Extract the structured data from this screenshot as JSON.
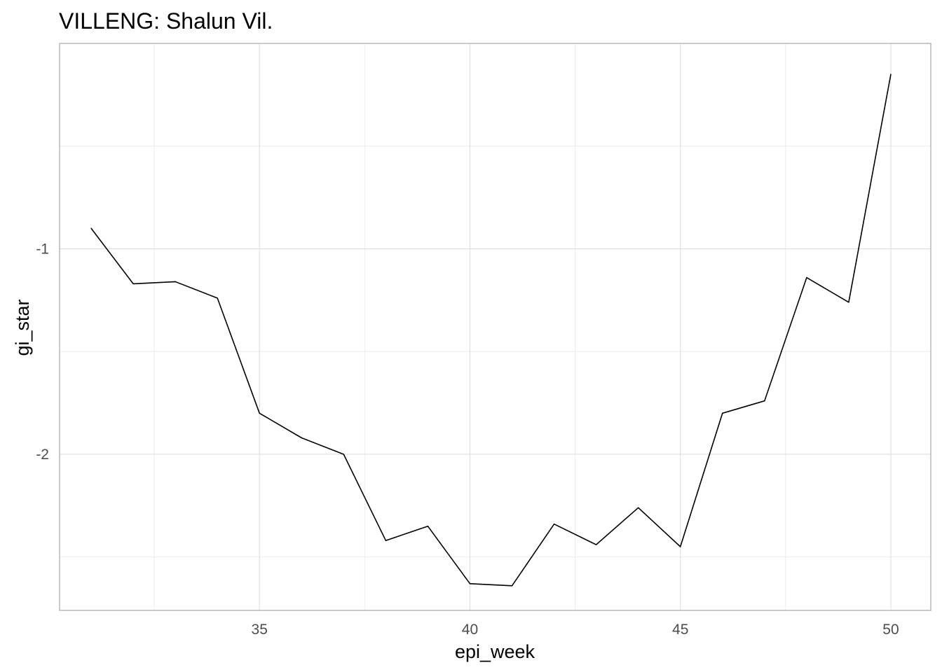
{
  "chart_data": {
    "type": "line",
    "title": "VILLENG: Shalun Vil.",
    "xlabel": "epi_week",
    "ylabel": "gi_star",
    "x": [
      31,
      32,
      33,
      34,
      35,
      36,
      37,
      38,
      39,
      40,
      41,
      42,
      43,
      44,
      45,
      46,
      47,
      48,
      49,
      50
    ],
    "series": [
      {
        "values": [
          -0.9,
          -1.17,
          -1.16,
          -1.24,
          -1.8,
          -1.92,
          -2.0,
          -2.42,
          -2.35,
          -2.63,
          -2.64,
          -2.34,
          -2.44,
          -2.26,
          -2.45,
          -1.8,
          -1.74,
          -1.14,
          -1.26,
          -0.15
        ]
      }
    ],
    "xlim": [
      30.25,
      50.95
    ],
    "ylim": [
      -2.76,
      0.0
    ],
    "x_ticks": [
      35,
      40,
      45,
      50
    ],
    "x_tick_labels": [
      "35",
      "40",
      "45",
      "50"
    ],
    "y_ticks": [
      -1,
      -2
    ],
    "y_tick_labels": [
      "-1",
      "-2"
    ],
    "x_minor_ticks": [
      32.5,
      37.5,
      42.5,
      47.5
    ],
    "y_minor_ticks": [
      -0.5,
      -1.5,
      -2.5
    ],
    "grid": true,
    "line_color": "#000000"
  }
}
